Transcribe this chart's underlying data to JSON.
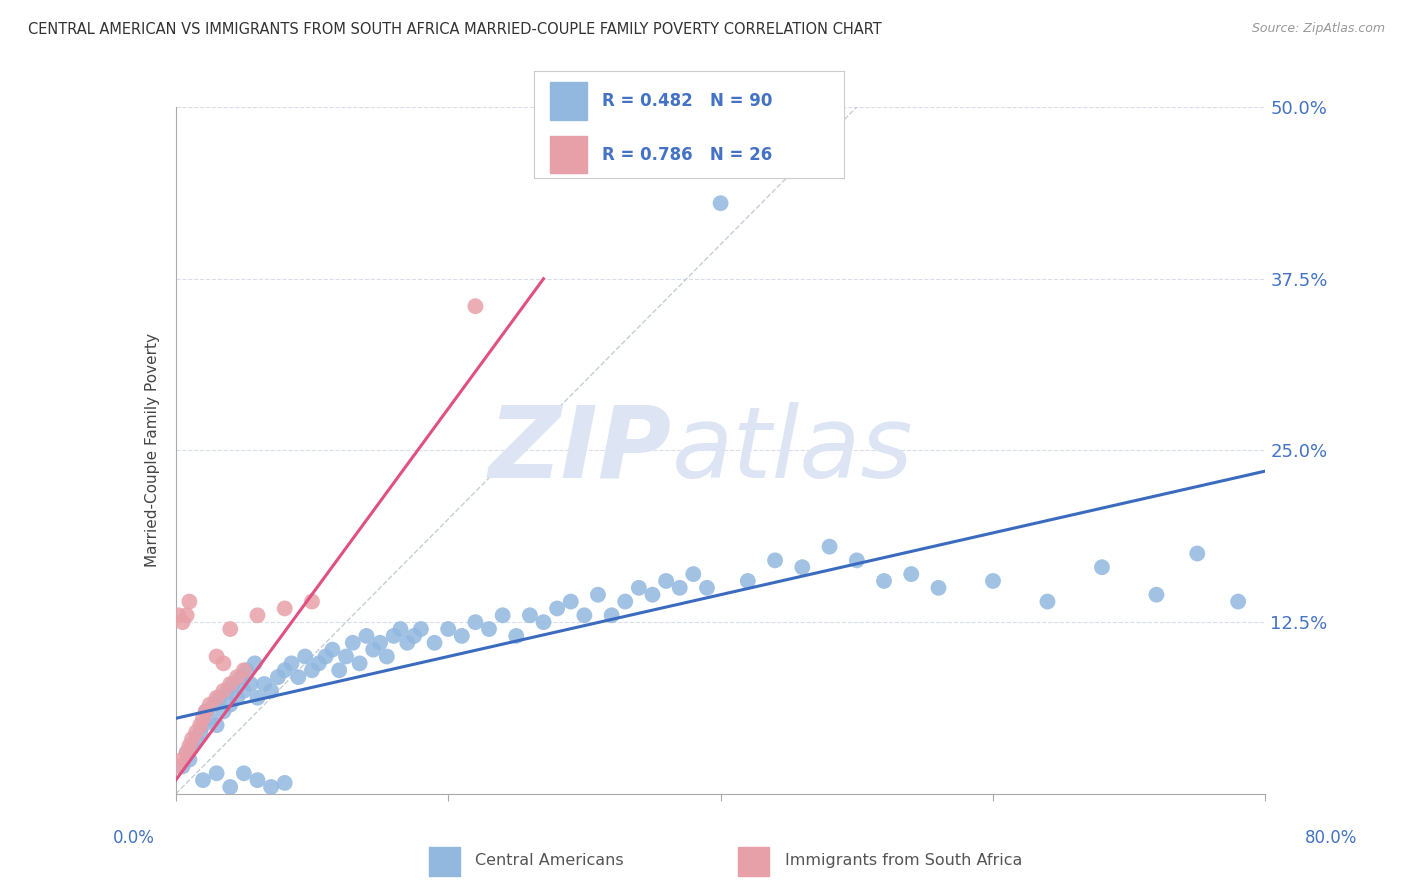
{
  "title": "CENTRAL AMERICAN VS IMMIGRANTS FROM SOUTH AFRICA MARRIED-COUPLE FAMILY POVERTY CORRELATION CHART",
  "source": "Source: ZipAtlas.com",
  "ylabel": "Married-Couple Family Poverty",
  "ytick_vals": [
    0.0,
    0.125,
    0.25,
    0.375,
    0.5
  ],
  "ytick_labels": [
    "",
    "12.5%",
    "25.0%",
    "37.5%",
    "50.0%"
  ],
  "xlim": [
    0.0,
    0.8
  ],
  "ylim": [
    0.0,
    0.5
  ],
  "legend_R1": "R = 0.482",
  "legend_N1": "N = 90",
  "legend_R2": "R = 0.786",
  "legend_N2": "N = 26",
  "color_blue": "#92b8e0",
  "color_pink": "#e8a0a8",
  "color_text_blue": "#4472c4",
  "color_text_pink": "#cc4444",
  "color_diag_line": "#c0c8d0",
  "color_blue_line": "#3a6bbf",
  "color_pink_line": "#e05080",
  "watermark_text": "ZIPatlas",
  "watermark_color": "#dde5f5",
  "background_color": "#ffffff",
  "grid_color": "#d8dde8",
  "legend_label1": "Central Americans",
  "legend_label2": "Immigrants from South Africa",
  "blue_x": [
    0.005,
    0.008,
    0.01,
    0.012,
    0.015,
    0.018,
    0.02,
    0.022,
    0.025,
    0.028,
    0.03,
    0.032,
    0.035,
    0.038,
    0.04,
    0.042,
    0.045,
    0.048,
    0.05,
    0.052,
    0.055,
    0.058,
    0.06,
    0.065,
    0.07,
    0.075,
    0.08,
    0.085,
    0.09,
    0.095,
    0.1,
    0.105,
    0.11,
    0.115,
    0.12,
    0.125,
    0.13,
    0.135,
    0.14,
    0.145,
    0.15,
    0.155,
    0.16,
    0.165,
    0.17,
    0.175,
    0.18,
    0.19,
    0.2,
    0.21,
    0.22,
    0.23,
    0.24,
    0.25,
    0.26,
    0.27,
    0.28,
    0.29,
    0.3,
    0.31,
    0.32,
    0.33,
    0.34,
    0.35,
    0.36,
    0.37,
    0.38,
    0.39,
    0.4,
    0.42,
    0.44,
    0.46,
    0.48,
    0.5,
    0.52,
    0.54,
    0.56,
    0.6,
    0.64,
    0.68,
    0.72,
    0.75,
    0.78,
    0.02,
    0.03,
    0.04,
    0.05,
    0.06,
    0.07,
    0.08
  ],
  "blue_y": [
    0.02,
    0.03,
    0.025,
    0.035,
    0.04,
    0.045,
    0.05,
    0.06,
    0.055,
    0.065,
    0.05,
    0.07,
    0.06,
    0.075,
    0.065,
    0.08,
    0.07,
    0.085,
    0.075,
    0.09,
    0.08,
    0.095,
    0.07,
    0.08,
    0.075,
    0.085,
    0.09,
    0.095,
    0.085,
    0.1,
    0.09,
    0.095,
    0.1,
    0.105,
    0.09,
    0.1,
    0.11,
    0.095,
    0.115,
    0.105,
    0.11,
    0.1,
    0.115,
    0.12,
    0.11,
    0.115,
    0.12,
    0.11,
    0.12,
    0.115,
    0.125,
    0.12,
    0.13,
    0.115,
    0.13,
    0.125,
    0.135,
    0.14,
    0.13,
    0.145,
    0.13,
    0.14,
    0.15,
    0.145,
    0.155,
    0.15,
    0.16,
    0.15,
    0.43,
    0.155,
    0.17,
    0.165,
    0.18,
    0.17,
    0.155,
    0.16,
    0.15,
    0.155,
    0.14,
    0.165,
    0.145,
    0.175,
    0.14,
    0.01,
    0.015,
    0.005,
    0.015,
    0.01,
    0.005,
    0.008
  ],
  "pink_x": [
    0.002,
    0.005,
    0.008,
    0.01,
    0.012,
    0.015,
    0.018,
    0.02,
    0.022,
    0.025,
    0.03,
    0.035,
    0.04,
    0.045,
    0.05,
    0.002,
    0.005,
    0.008,
    0.01,
    0.03,
    0.035,
    0.04,
    0.06,
    0.08,
    0.1,
    0.22
  ],
  "pink_y": [
    0.02,
    0.025,
    0.03,
    0.035,
    0.04,
    0.045,
    0.05,
    0.055,
    0.06,
    0.065,
    0.07,
    0.075,
    0.08,
    0.085,
    0.09,
    0.13,
    0.125,
    0.13,
    0.14,
    0.1,
    0.095,
    0.12,
    0.13,
    0.135,
    0.14,
    0.355
  ],
  "blue_line_x": [
    0.0,
    0.8
  ],
  "blue_line_y": [
    0.055,
    0.235
  ],
  "pink_line_x": [
    0.0,
    0.27
  ],
  "pink_line_y": [
    0.01,
    0.375
  ]
}
